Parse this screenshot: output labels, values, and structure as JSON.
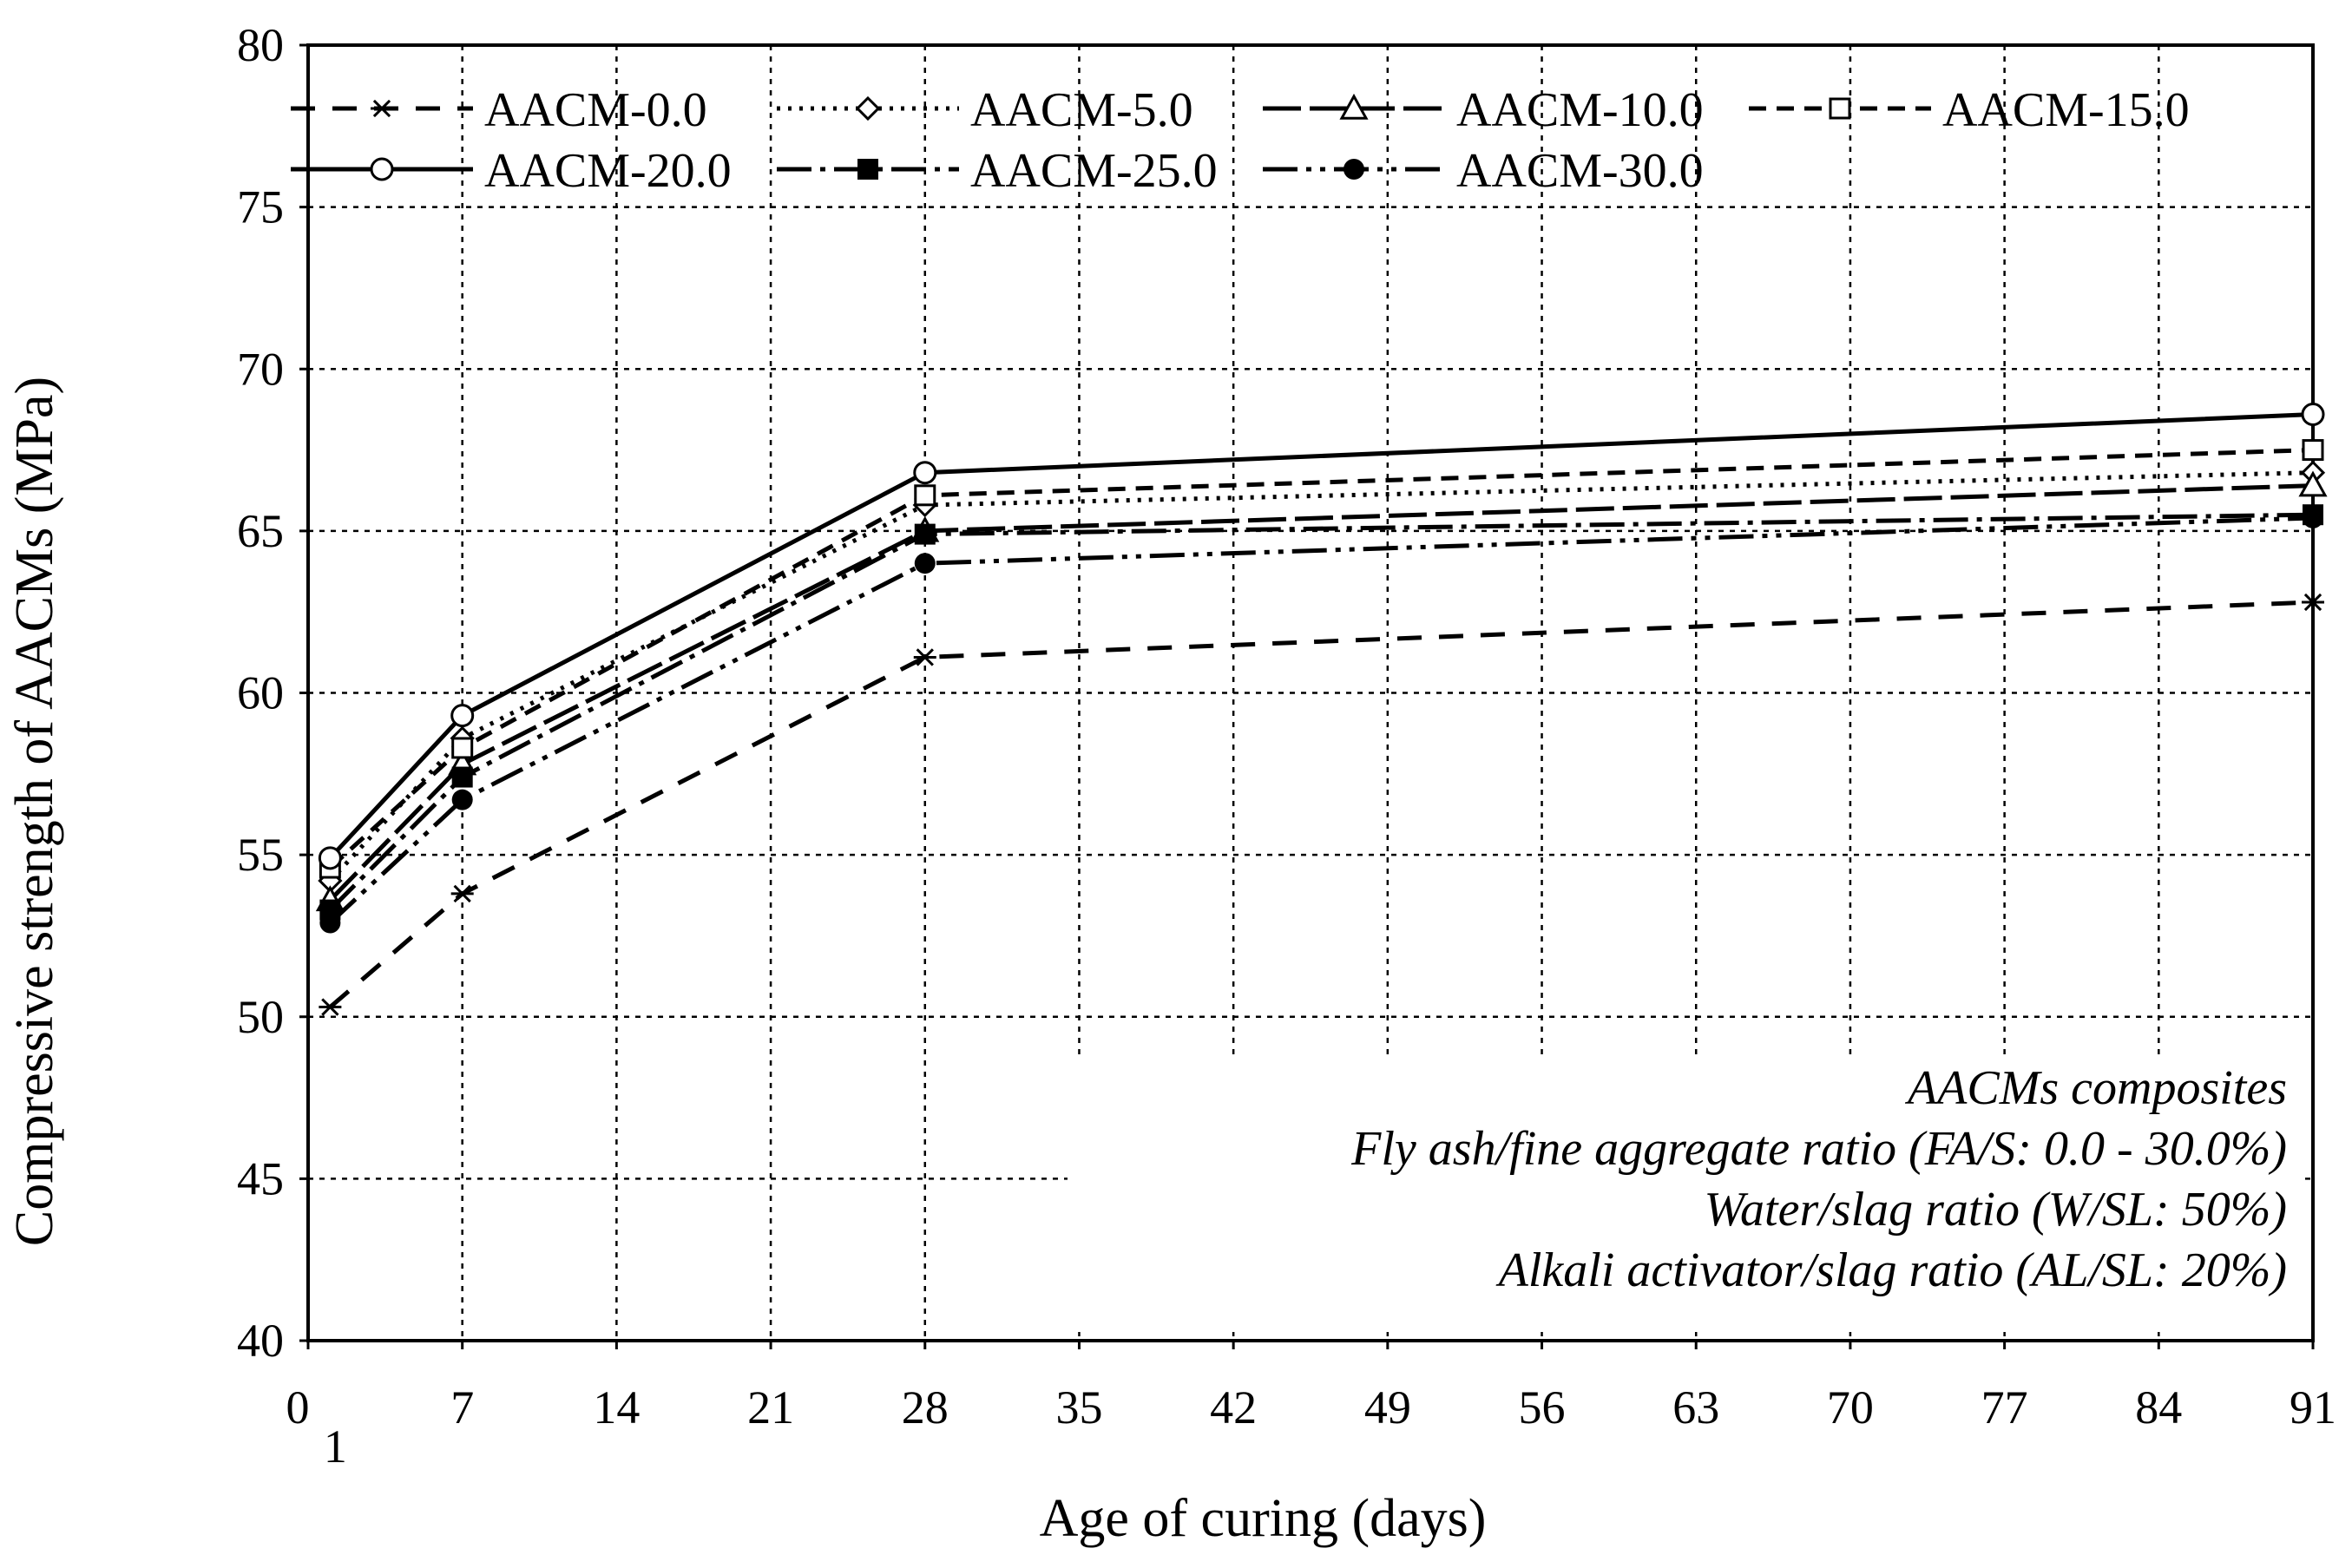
{
  "chart_data": {
    "type": "line",
    "title": "",
    "xlabel": "Age of curing (days)",
    "ylabel": "Compressive strength of AACMs (MPa)",
    "xlim": [
      0,
      91
    ],
    "ylim": [
      40,
      80
    ],
    "x_ticks": [
      0,
      7,
      14,
      21,
      28,
      35,
      42,
      49,
      56,
      63,
      70,
      77,
      84,
      91
    ],
    "y_ticks": [
      40,
      45,
      50,
      55,
      60,
      65,
      70,
      75,
      80
    ],
    "extra_x_tick": "1",
    "grid": true,
    "x": [
      1,
      7,
      28,
      91
    ],
    "series": [
      {
        "name": "AACM-0.0",
        "values": [
          50.3,
          53.8,
          61.1,
          62.8
        ],
        "marker": "star",
        "dash": "28 20",
        "color": "#000000"
      },
      {
        "name": "AACM-5.0",
        "values": [
          54.2,
          58.6,
          65.8,
          66.8
        ],
        "marker": "diamond-open",
        "dash": "4 9",
        "color": "#000000"
      },
      {
        "name": "AACM-10.0",
        "values": [
          53.6,
          57.8,
          65.0,
          66.4
        ],
        "marker": "triangle-open",
        "dash": "44 10",
        "color": "#000000"
      },
      {
        "name": "AACM-15.0",
        "values": [
          54.6,
          58.3,
          66.1,
          67.5
        ],
        "marker": "square-open",
        "dash": "20 12",
        "color": "#000000"
      },
      {
        "name": "AACM-20.0",
        "values": [
          54.9,
          59.3,
          66.8,
          68.6
        ],
        "marker": "circle-open",
        "dash": "",
        "color": "#000000"
      },
      {
        "name": "AACM-25.0",
        "values": [
          53.3,
          57.4,
          64.9,
          65.5
        ],
        "marker": "square-filled",
        "dash": "40 10 6 10",
        "color": "#000000"
      },
      {
        "name": "AACM-30.0",
        "values": [
          52.9,
          56.7,
          64.0,
          65.4
        ],
        "marker": "circle-filled",
        "dash": "40 10 6 10 6 10",
        "color": "#000000"
      }
    ],
    "legend_position": "top",
    "annotations": [
      "AACMs composites",
      "Fly ash/fine aggregate ratio (FA/S: 0.0 - 30.0%)",
      "Water/slag ratio (W/SL: 50%)",
      "Alkali activator/slag ratio (AL/SL: 20%)"
    ]
  }
}
